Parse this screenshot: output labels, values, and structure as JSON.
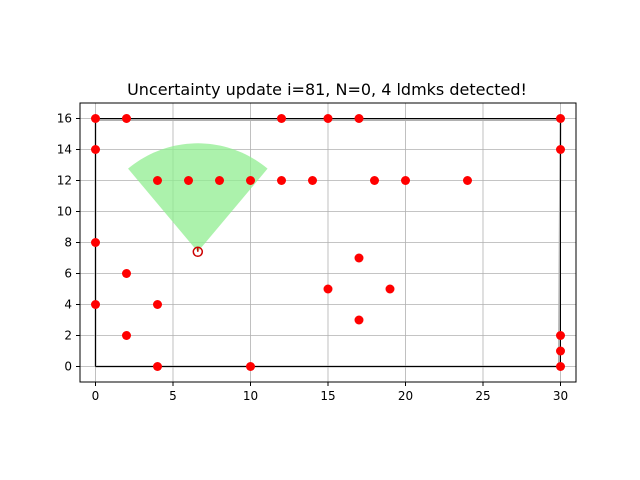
{
  "chart_data": {
    "type": "scatter",
    "title": "Uncertainty update i=81, N=0, 4 ldmks detected!",
    "xlabel": "",
    "ylabel": "",
    "xlim": [
      -1,
      31
    ],
    "ylim": [
      -1,
      17
    ],
    "grid": true,
    "x_ticks": [
      0,
      5,
      10,
      15,
      20,
      25,
      30
    ],
    "y_ticks": [
      0,
      2,
      4,
      6,
      8,
      10,
      12,
      14,
      16
    ],
    "boundary": {
      "color": "#000000",
      "points": [
        [
          0,
          0
        ],
        [
          0,
          16
        ],
        [
          30,
          16
        ],
        [
          30,
          0
        ],
        [
          0,
          0
        ]
      ]
    },
    "trajectory": {
      "color": "#b0b0b0",
      "points": [
        [
          0,
          0
        ],
        [
          0,
          15.9
        ],
        [
          30,
          15.9
        ],
        [
          29.9,
          0
        ],
        [
          0,
          0
        ]
      ]
    },
    "landmarks": {
      "color": "#ff0000",
      "points": [
        [
          0,
          16
        ],
        [
          2,
          16
        ],
        [
          12,
          16
        ],
        [
          15,
          16
        ],
        [
          17,
          16
        ],
        [
          30,
          16
        ],
        [
          0,
          14
        ],
        [
          30,
          14
        ],
        [
          4,
          12
        ],
        [
          6,
          12
        ],
        [
          8,
          12
        ],
        [
          10,
          12
        ],
        [
          12,
          12
        ],
        [
          14,
          12
        ],
        [
          18,
          12
        ],
        [
          20,
          12
        ],
        [
          24,
          12
        ],
        [
          0,
          8
        ],
        [
          17,
          7
        ],
        [
          2,
          6
        ],
        [
          15,
          5
        ],
        [
          19,
          5
        ],
        [
          0,
          4
        ],
        [
          4,
          4
        ],
        [
          17,
          3
        ],
        [
          2,
          2
        ],
        [
          30,
          2
        ],
        [
          30,
          1
        ],
        [
          4,
          0
        ],
        [
          10,
          0
        ],
        [
          30,
          0
        ]
      ]
    },
    "robot": {
      "x": 6.6,
      "y": 7.4,
      "heading_deg": 90,
      "color": "#cc0000"
    },
    "sensor_fov": {
      "range": 7.0,
      "half_angle_deg": 40,
      "color": "#90ee90"
    }
  }
}
